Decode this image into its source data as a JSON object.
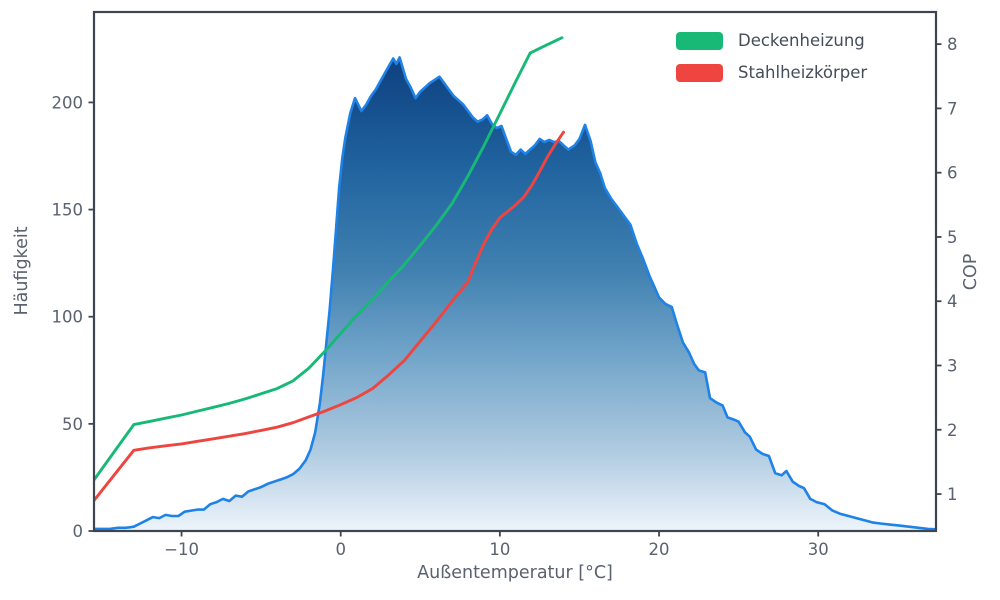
{
  "colors": {
    "background": "#ffffff",
    "spine": "#3e4551",
    "tick_text": "#5a6270",
    "hist_outline": "#1f82e6",
    "hist_gradient_top": "#0a3a78",
    "hist_gradient_mid": "#4181b1",
    "hist_gradient_bottom": "#eef4fb",
    "deckenheizung": "#18b877",
    "stahlheizkoerper": "#ee4540"
  },
  "axes": {
    "x": {
      "label": "Außentemperatur [°C]",
      "range": [
        -15.5,
        37.4
      ],
      "ticks": [
        {
          "v": -10,
          "label": "−10"
        },
        {
          "v": 0,
          "label": "0"
        },
        {
          "v": 10,
          "label": "10"
        },
        {
          "v": 20,
          "label": "20"
        },
        {
          "v": 30,
          "label": "30"
        }
      ]
    },
    "y_left": {
      "label": "Häufigkeit",
      "range": [
        0,
        242.2
      ],
      "ticks": [
        {
          "v": 0,
          "label": "0"
        },
        {
          "v": 50,
          "label": "50"
        },
        {
          "v": 100,
          "label": "100"
        },
        {
          "v": 150,
          "label": "150"
        },
        {
          "v": 200,
          "label": "200"
        }
      ]
    },
    "y_right": {
      "label": "COP",
      "range": [
        0.425,
        8.5
      ],
      "ticks": [
        {
          "v": 1,
          "label": "1"
        },
        {
          "v": 2,
          "label": "2"
        },
        {
          "v": 3,
          "label": "3"
        },
        {
          "v": 4,
          "label": "4"
        },
        {
          "v": 5,
          "label": "5"
        },
        {
          "v": 6,
          "label": "6"
        },
        {
          "v": 7,
          "label": "7"
        },
        {
          "v": 8,
          "label": "8"
        }
      ]
    }
  },
  "legend": {
    "items": [
      {
        "label": "Deckenheizung",
        "color": "#18b877"
      },
      {
        "label": "Stahlheizkörper",
        "color": "#ee4540"
      }
    ]
  },
  "chart_data": [
    {
      "type": "area",
      "name": "Häufigkeit der Außentemperatur",
      "axis": "left",
      "points": [
        [
          -15.5,
          1
        ],
        [
          -15,
          1
        ],
        [
          -14.5,
          1
        ],
        [
          -14,
          1.5
        ],
        [
          -13.5,
          1.5
        ],
        [
          -13,
          2
        ],
        [
          -12.6,
          3.5
        ],
        [
          -12.2,
          5
        ],
        [
          -11.8,
          6.5
        ],
        [
          -11.4,
          6
        ],
        [
          -11,
          7.5
        ],
        [
          -10.6,
          7
        ],
        [
          -10.2,
          7
        ],
        [
          -9.8,
          9
        ],
        [
          -9.4,
          9.5
        ],
        [
          -9,
          10
        ],
        [
          -8.6,
          10
        ],
        [
          -8.2,
          12.5
        ],
        [
          -7.8,
          13.5
        ],
        [
          -7.4,
          15
        ],
        [
          -7,
          14
        ],
        [
          -6.6,
          16.5
        ],
        [
          -6.2,
          16
        ],
        [
          -5.8,
          18.5
        ],
        [
          -5.4,
          19.5
        ],
        [
          -5,
          20.5
        ],
        [
          -4.6,
          22
        ],
        [
          -4.2,
          23
        ],
        [
          -3.8,
          24
        ],
        [
          -3.4,
          25
        ],
        [
          -3,
          26.5
        ],
        [
          -2.6,
          29
        ],
        [
          -2.2,
          33
        ],
        [
          -1.9,
          38
        ],
        [
          -1.6,
          46
        ],
        [
          -1.3,
          60
        ],
        [
          -1.1,
          73
        ],
        [
          -0.9,
          88
        ],
        [
          -0.7,
          103
        ],
        [
          -0.5,
          121
        ],
        [
          -0.3,
          140
        ],
        [
          -0.1,
          160
        ],
        [
          0.1,
          174
        ],
        [
          0.3,
          184
        ],
        [
          0.6,
          195
        ],
        [
          0.9,
          202
        ],
        [
          1.1,
          199
        ],
        [
          1.3,
          196
        ],
        [
          1.6,
          199
        ],
        [
          1.9,
          203
        ],
        [
          2.2,
          206
        ],
        [
          2.5,
          210
        ],
        [
          2.8,
          214
        ],
        [
          3.1,
          218
        ],
        [
          3.3,
          220.5
        ],
        [
          3.5,
          218
        ],
        [
          3.7,
          221
        ],
        [
          3.9,
          216
        ],
        [
          4.1,
          211
        ],
        [
          4.4,
          207
        ],
        [
          4.7,
          202
        ],
        [
          5,
          205
        ],
        [
          5.3,
          207
        ],
        [
          5.6,
          209
        ],
        [
          5.9,
          210.5
        ],
        [
          6.2,
          212
        ],
        [
          6.5,
          209
        ],
        [
          6.8,
          206
        ],
        [
          7.1,
          203
        ],
        [
          7.4,
          201
        ],
        [
          7.7,
          199
        ],
        [
          8,
          196
        ],
        [
          8.3,
          193
        ],
        [
          8.6,
          191
        ],
        [
          8.9,
          192
        ],
        [
          9.2,
          194
        ],
        [
          9.5,
          190
        ],
        [
          9.8,
          188
        ],
        [
          10.1,
          189
        ],
        [
          10.4,
          183
        ],
        [
          10.7,
          177
        ],
        [
          11,
          175.5
        ],
        [
          11.3,
          178
        ],
        [
          11.6,
          176
        ],
        [
          11.9,
          178
        ],
        [
          12.2,
          180
        ],
        [
          12.5,
          183
        ],
        [
          12.8,
          181.5
        ],
        [
          13.1,
          182.5
        ],
        [
          13.4,
          181.5
        ],
        [
          13.7,
          182
        ],
        [
          14,
          180
        ],
        [
          14.3,
          178
        ],
        [
          14.7,
          180
        ],
        [
          15,
          183
        ],
        [
          15.35,
          189.5
        ],
        [
          15.7,
          182
        ],
        [
          16,
          172
        ],
        [
          16.3,
          167
        ],
        [
          16.6,
          160
        ],
        [
          17,
          155
        ],
        [
          17.4,
          151
        ],
        [
          17.8,
          147
        ],
        [
          18.2,
          143
        ],
        [
          18.6,
          134
        ],
        [
          19,
          127
        ],
        [
          19.4,
          119
        ],
        [
          19.7,
          114
        ],
        [
          20,
          109
        ],
        [
          20.4,
          106
        ],
        [
          20.8,
          104.5
        ],
        [
          21.1,
          97
        ],
        [
          21.5,
          88
        ],
        [
          21.9,
          83
        ],
        [
          22.2,
          78
        ],
        [
          22.5,
          75
        ],
        [
          22.9,
          74
        ],
        [
          23.2,
          62
        ],
        [
          23.6,
          60
        ],
        [
          24,
          58.5
        ],
        [
          24.3,
          53
        ],
        [
          24.7,
          52
        ],
        [
          25,
          51
        ],
        [
          25.4,
          46
        ],
        [
          25.7,
          44
        ],
        [
          26.1,
          38
        ],
        [
          26.5,
          36
        ],
        [
          26.9,
          35
        ],
        [
          27.3,
          27
        ],
        [
          27.7,
          26
        ],
        [
          28,
          28
        ],
        [
          28.4,
          23
        ],
        [
          28.8,
          21
        ],
        [
          29.1,
          20
        ],
        [
          29.5,
          15
        ],
        [
          29.9,
          13.5
        ],
        [
          30.4,
          12.5
        ],
        [
          30.9,
          9.5
        ],
        [
          31.4,
          8
        ],
        [
          31.9,
          7
        ],
        [
          32.4,
          6
        ],
        [
          32.9,
          5
        ],
        [
          33.4,
          4
        ],
        [
          33.9,
          3.5
        ],
        [
          34.5,
          3
        ],
        [
          35.1,
          2.5
        ],
        [
          35.7,
          2
        ],
        [
          36.3,
          1.5
        ],
        [
          36.9,
          1
        ],
        [
          37.4,
          0.8
        ]
      ]
    },
    {
      "type": "line",
      "name": "Deckenheizung",
      "axis": "right",
      "points": [
        [
          -15.5,
          1.22
        ],
        [
          -13,
          2.08
        ],
        [
          -12,
          2.13
        ],
        [
          -11,
          2.18
        ],
        [
          -10,
          2.23
        ],
        [
          -9,
          2.29
        ],
        [
          -8,
          2.35
        ],
        [
          -7,
          2.41
        ],
        [
          -6,
          2.48
        ],
        [
          -5,
          2.56
        ],
        [
          -4,
          2.64
        ],
        [
          -3,
          2.76
        ],
        [
          -2,
          2.96
        ],
        [
          -1,
          3.22
        ],
        [
          0,
          3.5
        ],
        [
          1,
          3.78
        ],
        [
          2,
          4.03
        ],
        [
          3,
          4.3
        ],
        [
          4,
          4.57
        ],
        [
          5,
          4.87
        ],
        [
          6,
          5.18
        ],
        [
          7,
          5.52
        ],
        [
          8,
          5.95
        ],
        [
          9,
          6.42
        ],
        [
          10,
          6.92
        ],
        [
          11,
          7.42
        ],
        [
          11.9,
          7.86
        ],
        [
          12.8,
          7.97
        ],
        [
          13.9,
          8.1
        ]
      ]
    },
    {
      "type": "line",
      "name": "Stahlheizkörper",
      "axis": "right",
      "points": [
        [
          -15.5,
          0.9
        ],
        [
          -13,
          1.68
        ],
        [
          -12,
          1.72
        ],
        [
          -11,
          1.75
        ],
        [
          -10,
          1.78
        ],
        [
          -9,
          1.82
        ],
        [
          -8,
          1.86
        ],
        [
          -7,
          1.9
        ],
        [
          -6,
          1.94
        ],
        [
          -5,
          1.99
        ],
        [
          -4,
          2.04
        ],
        [
          -3,
          2.11
        ],
        [
          -2,
          2.2
        ],
        [
          -1,
          2.29
        ],
        [
          0,
          2.39
        ],
        [
          1,
          2.5
        ],
        [
          2,
          2.64
        ],
        [
          3,
          2.85
        ],
        [
          4,
          3.08
        ],
        [
          5,
          3.38
        ],
        [
          6,
          3.68
        ],
        [
          7,
          4.0
        ],
        [
          8,
          4.3
        ],
        [
          8.3,
          4.5
        ],
        [
          9,
          4.9
        ],
        [
          9.5,
          5.12
        ],
        [
          10,
          5.3
        ],
        [
          11,
          5.5
        ],
        [
          11.5,
          5.62
        ],
        [
          12,
          5.8
        ],
        [
          12.5,
          6.02
        ],
        [
          13,
          6.25
        ],
        [
          13.5,
          6.45
        ],
        [
          14,
          6.63
        ]
      ]
    }
  ]
}
